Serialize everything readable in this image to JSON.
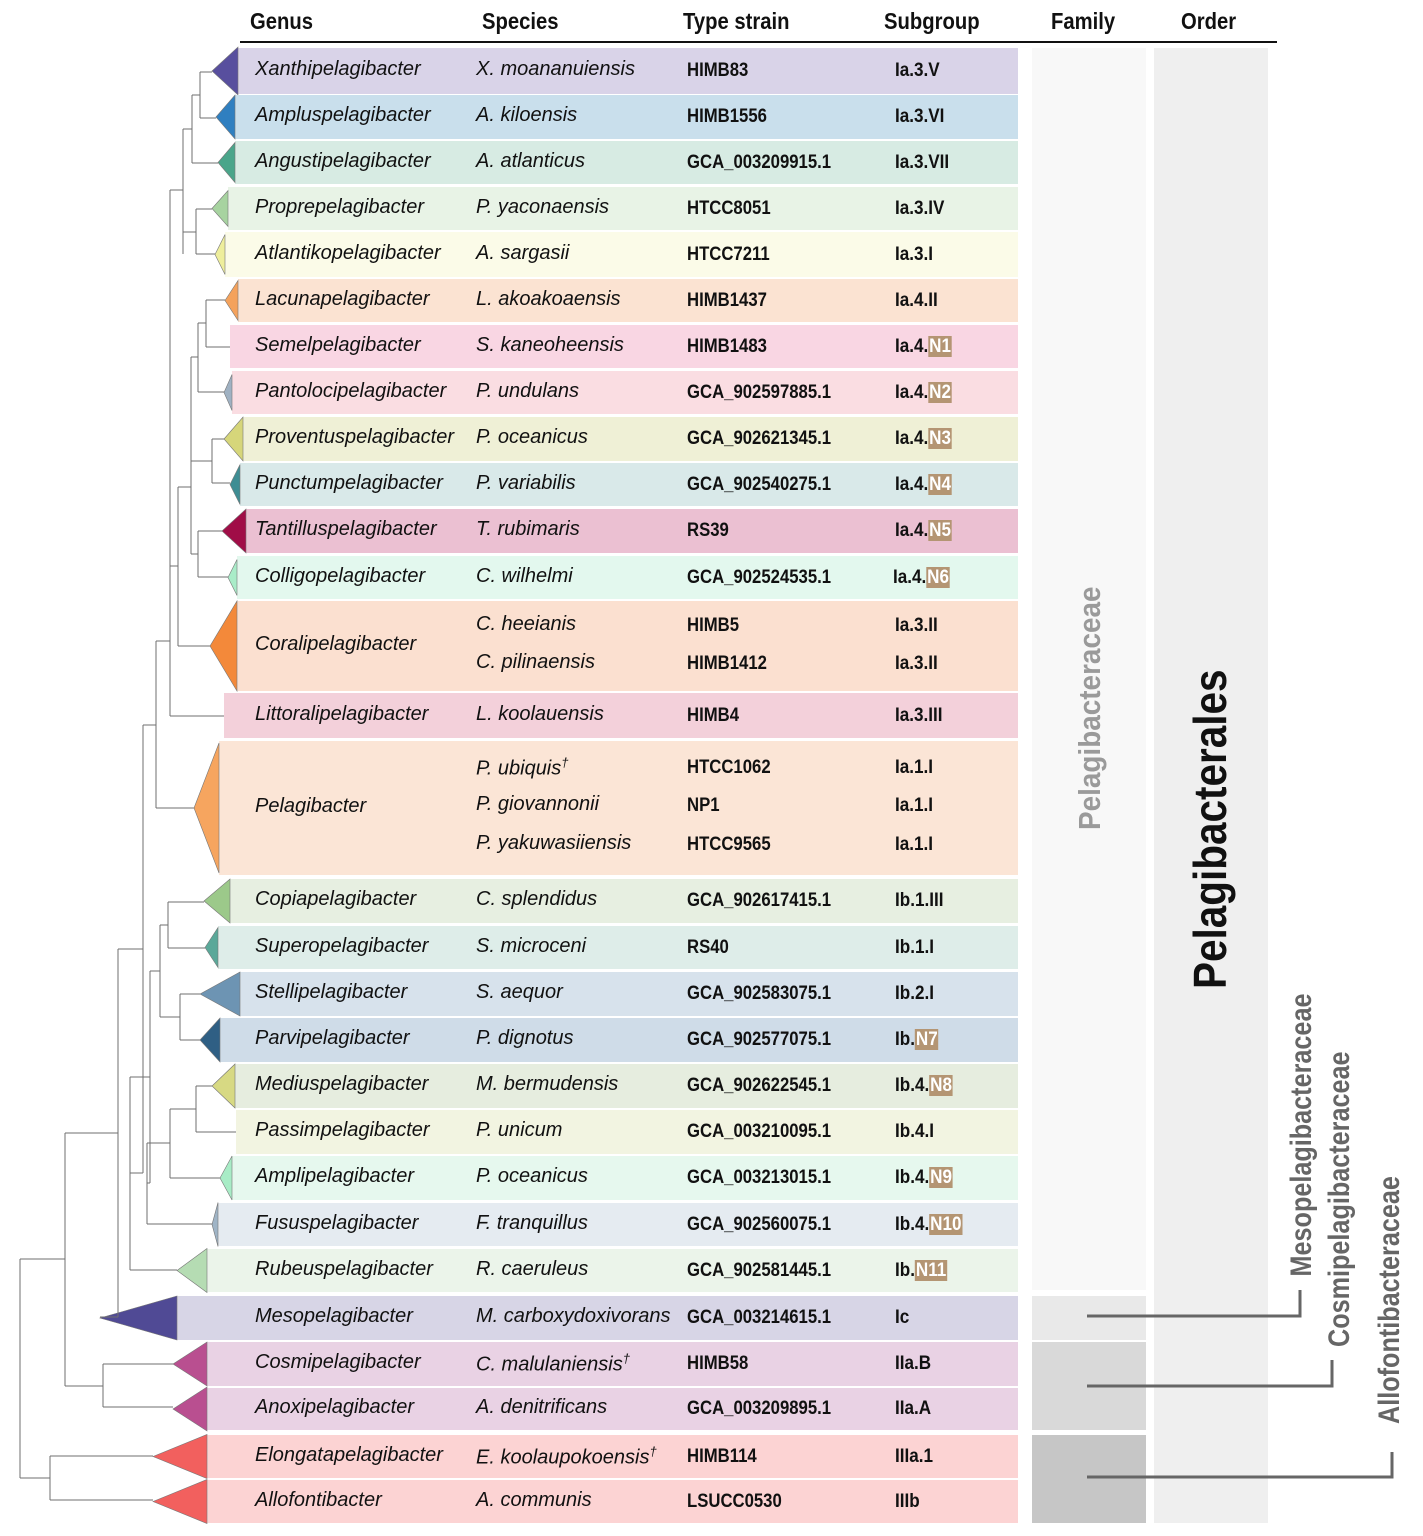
{
  "headers": {
    "genus": "Genus",
    "species": "Species",
    "strain": "Type strain",
    "subgroup": "Subgroup",
    "family": "Family",
    "order": "Order"
  },
  "order_label": "Pelagibacterales",
  "family_labels": {
    "pelagibacteraceae": "Pelagibacteraceae",
    "mesopelagibacteraceae": "Mesopelagibacteraceae",
    "cosmipelagibacteraceae": "Cosmipelagibacteraceae",
    "allofontibacteraceae": "Allofontibacteraceae"
  },
  "rows": [
    {
      "genus": "Xanthipelagibacter",
      "color": "#d9d3e8",
      "tri": "#584f9e",
      "species": [
        {
          "name": "X. moananuiensis",
          "strain": "HIMB83",
          "sub": "Ia.3.V",
          "novel": ""
        }
      ]
    },
    {
      "genus": "Ampluspelagibacter",
      "color": "#c9dfec",
      "tri": "#2f7fc0",
      "species": [
        {
          "name": "A. kiloensis",
          "strain": "HIMB1556",
          "sub": "Ia.3.VI",
          "novel": ""
        }
      ]
    },
    {
      "genus": "Angustipelagibacter",
      "color": "#d7ebe3",
      "tri": "#4aa58a",
      "species": [
        {
          "name": "A. atlanticus",
          "strain": "GCA_003209915.1",
          "sub": "Ia.3.VII",
          "novel": ""
        }
      ]
    },
    {
      "genus": "Proprepelagibacter",
      "color": "#e8f3e6",
      "tri": "#a7d3a0",
      "species": [
        {
          "name": "P. yaconaensis",
          "strain": "HTCC8051",
          "sub": "Ia.3.IV",
          "novel": ""
        }
      ]
    },
    {
      "genus": "Atlantikopelagibacter",
      "color": "#fbfbe8",
      "tri": "#eeee9c",
      "species": [
        {
          "name": "A. sargasii",
          "strain": "HTCC7211",
          "sub": "Ia.3.I",
          "novel": ""
        }
      ]
    },
    {
      "genus": "Lacunapelagibacter",
      "color": "#fbe3d2",
      "tri": "#f4a25c",
      "species": [
        {
          "name": "L. akoakoaensis",
          "strain": "HIMB1437",
          "sub": "Ia.4.II",
          "novel": ""
        }
      ]
    },
    {
      "genus": "Semelpelagibacter",
      "color": "#f9d6e3",
      "tri": "#e7a4bf",
      "species": [
        {
          "name": "S. kaneoheensis",
          "strain": "HIMB1483",
          "sub": "Ia.4.",
          "novel": "N1"
        }
      ]
    },
    {
      "genus": "Pantolocipelagibacter",
      "color": "#fadde2",
      "tri": "#9fb1c2",
      "species": [
        {
          "name": "P. undulans",
          "strain": "GCA_902597885.1",
          "sub": "Ia.4.",
          "novel": "N2"
        }
      ]
    },
    {
      "genus": "Proventuspelagibacter",
      "color": "#eff0d6",
      "tri": "#d6d67a",
      "species": [
        {
          "name": "P. oceanicus",
          "strain": "GCA_902621345.1",
          "sub": "Ia.4.",
          "novel": "N3"
        }
      ]
    },
    {
      "genus": "Punctumpelagibacter",
      "color": "#d9e9e9",
      "tri": "#3e8d93",
      "species": [
        {
          "name": "P. variabilis",
          "strain": "GCA_902540275.1",
          "sub": "Ia.4.",
          "novel": "N4"
        }
      ]
    },
    {
      "genus": "Tantilluspelagibacter",
      "color": "#ebc0d2",
      "tri": "#a00d47",
      "species": [
        {
          "name": "T. rubimaris",
          "strain": "RS39",
          "sub": "Ia.4.",
          "novel": "N5"
        }
      ]
    },
    {
      "genus": "Colligopelagibacter",
      "color": "#e3f8ee",
      "tri": "#a9ecc8",
      "species": [
        {
          "name": "C. wilhelmi",
          "strain": "GCA_902524535.1",
          "sub": "Ia.4.",
          "novel": "N6"
        }
      ]
    },
    {
      "genus": "Coralipelagibacter",
      "color": "#fbe0d0",
      "tri": "#f3893a",
      "species": [
        {
          "name": "C. heeianis",
          "strain": "HIMB5",
          "sub": "Ia.3.II",
          "novel": ""
        },
        {
          "name": "C. pilinaensis",
          "strain": "HIMB1412",
          "sub": "Ia.3.II",
          "novel": ""
        }
      ]
    },
    {
      "genus": "Littoralipelagibacter",
      "color": "#f3d0da",
      "tri": "#e6a8bd",
      "species": [
        {
          "name": "L. koolauensis",
          "strain": "HIMB4",
          "sub": "Ia.3.III",
          "novel": ""
        }
      ]
    },
    {
      "genus": "Pelagibacter",
      "color": "#fbe5d6",
      "tri": "#f6a55f",
      "species": [
        {
          "name": "P. ubiquis",
          "sup": "†",
          "strain": "HTCC1062",
          "sub": "Ia.1.I",
          "novel": ""
        },
        {
          "name": "P. giovannonii",
          "strain": "NP1",
          "sub": "Ia.1.I",
          "novel": ""
        },
        {
          "name": "P. yakuwasiiensis",
          "strain": "HTCC9565",
          "sub": "Ia.1.I",
          "novel": ""
        }
      ]
    },
    {
      "genus": "Copiapelagibacter",
      "color": "#e7efe1",
      "tri": "#9cc98a",
      "species": [
        {
          "name": "C. splendidus",
          "strain": "GCA_902617415.1",
          "sub": "Ib.1.III",
          "novel": ""
        }
      ]
    },
    {
      "genus": "Superopelagibacter",
      "color": "#deede9",
      "tri": "#5aa899",
      "species": [
        {
          "name": "S. microceni",
          "strain": "RS40",
          "sub": "Ib.1.I",
          "novel": ""
        }
      ]
    },
    {
      "genus": "Stellipelagibacter",
      "color": "#d7e2ec",
      "tri": "#6d94b3",
      "species": [
        {
          "name": "S. aequor",
          "strain": "GCA_902583075.1",
          "sub": "Ib.2.I",
          "novel": ""
        }
      ]
    },
    {
      "genus": "Parvipelagibacter",
      "color": "#cfdce8",
      "tri": "#2f5f84",
      "species": [
        {
          "name": "P. dignotus",
          "strain": "GCA_902577075.1",
          "sub": "Ib.",
          "novel": "N7"
        }
      ]
    },
    {
      "genus": "Mediuspelagibacter",
      "color": "#e6eddf",
      "tri": "#d7d983",
      "species": [
        {
          "name": "M. bermudensis",
          "strain": "GCA_902622545.1",
          "sub": "Ib.4.",
          "novel": "N8"
        }
      ]
    },
    {
      "genus": "Passimpelagibacter",
      "color": "#f2f4e1",
      "tri": "",
      "species": [
        {
          "name": "P. unicum",
          "strain": "GCA_003210095.1",
          "sub": "Ib.4.I",
          "novel": ""
        }
      ]
    },
    {
      "genus": "Amplipelagibacter",
      "color": "#e6f8ee",
      "tri": "#a8ecc6",
      "species": [
        {
          "name": "P. oceanicus",
          "strain": "GCA_003213015.1",
          "sub": "Ib.4.",
          "novel": "N9"
        }
      ]
    },
    {
      "genus": "Fususpelagibacter",
      "color": "#e5ebf1",
      "tri": "#9fb4c6",
      "species": [
        {
          "name": "F. tranquillus",
          "strain": "GCA_902560075.1",
          "sub": "Ib.4.",
          "novel": "N10"
        }
      ]
    },
    {
      "genus": "Rubeuspelagibacter",
      "color": "#ebf4ea",
      "tri": "#b5dcb3",
      "species": [
        {
          "name": "R. caeruleus",
          "strain": "GCA_902581445.1",
          "sub": "Ib.",
          "novel": "N11"
        }
      ]
    },
    {
      "genus": "Mesopelagibacter",
      "color": "#d7d5e6",
      "tri": "#504a95",
      "species": [
        {
          "name": "M. carboxydoxivorans",
          "strain": "GCA_003214615.1",
          "sub": "Ic",
          "novel": ""
        }
      ]
    },
    {
      "genus": "Cosmipelagibacter",
      "color": "#e9d2e4",
      "tri": "#b94f90",
      "species": [
        {
          "name": "C. malulaniensis",
          "sup": "†",
          "strain": "HIMB58",
          "sub": "IIa.B",
          "novel": ""
        }
      ]
    },
    {
      "genus": "Anoxipelagibacter",
      "color": "#e9d2e4",
      "tri": "#b94f90",
      "species": [
        {
          "name": "A. denitrificans",
          "strain": "GCA_003209895.1",
          "sub": "IIa.A",
          "novel": ""
        }
      ]
    },
    {
      "genus": "Elongatapelagibacter",
      "color": "#fcd3d3",
      "tri": "#f2605e",
      "species": [
        {
          "name": "E. koolaupokoensis",
          "sup": "†",
          "strain": "HIMB114",
          "sub": "IIIa.1",
          "novel": ""
        }
      ]
    },
    {
      "genus": "Allofontibacter",
      "color": "#fcd3d3",
      "tri": "#f2605e",
      "species": [
        {
          "name": "A. communis",
          "strain": "LSUCC0530",
          "sub": "IIIb",
          "novel": ""
        }
      ]
    }
  ]
}
